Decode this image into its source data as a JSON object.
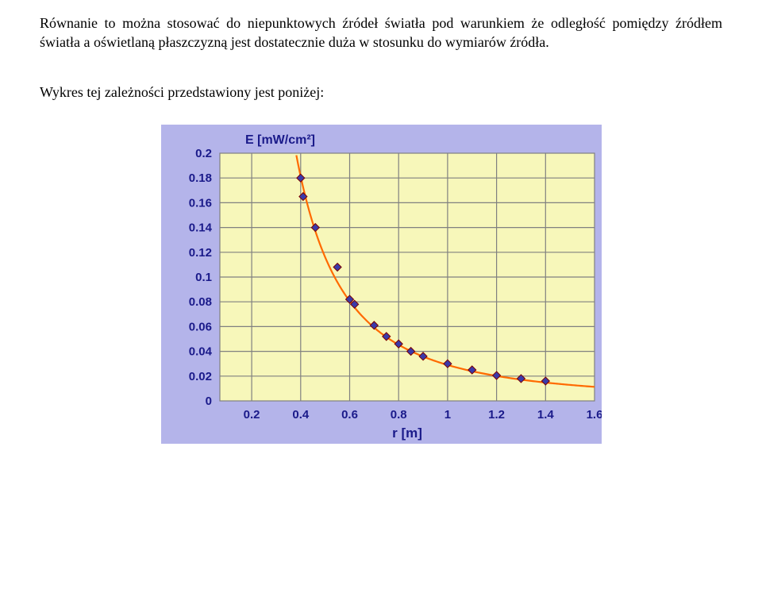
{
  "paragraph": "Równanie to można stosować do niepunktowych źródeł światła pod warunkiem że odległość pomiędzy źródłem światła a oświetlaną płaszczyzną jest dostatecznie duża w stosunku do wymiarów źródła.",
  "caption": "Wykres tej zależności przedstawiony jest poniżej:",
  "chart": {
    "type": "scatter-with-fit-curve",
    "background_color": "#b4b4ea",
    "plot_area_color": "#f7f7ba",
    "grid_color": "#808080",
    "label_color": "#1a1a8a",
    "curve_color": "#ff6a00",
    "marker_fill": "#3a3aaa",
    "marker_edge": "#7a0000",
    "marker_shape": "diamond",
    "marker_size": 5,
    "y_axis_title": "E [mW/cm²]",
    "y_axis_title_fontsize": 16,
    "x_axis_title": "r [m]",
    "x_axis_title_fontsize": 17,
    "xlim": [
      0.07,
      1.6
    ],
    "ylim": [
      0,
      0.2
    ],
    "xticks": [
      0.2,
      0.4,
      0.6,
      0.8,
      1,
      1.2,
      1.4,
      1.6
    ],
    "yticks": [
      0,
      0.02,
      0.04,
      0.06,
      0.08,
      0.1,
      0.12,
      0.14,
      0.16,
      0.18,
      0.2
    ],
    "points": [
      {
        "r": 0.4,
        "E": 0.18
      },
      {
        "r": 0.41,
        "E": 0.165
      },
      {
        "r": 0.46,
        "E": 0.14
      },
      {
        "r": 0.55,
        "E": 0.108
      },
      {
        "r": 0.6,
        "E": 0.082
      },
      {
        "r": 0.62,
        "E": 0.078
      },
      {
        "r": 0.7,
        "E": 0.061
      },
      {
        "r": 0.75,
        "E": 0.052
      },
      {
        "r": 0.8,
        "E": 0.046
      },
      {
        "r": 0.85,
        "E": 0.04
      },
      {
        "r": 0.9,
        "E": 0.036
      },
      {
        "r": 1.0,
        "E": 0.03
      },
      {
        "r": 1.1,
        "E": 0.025
      },
      {
        "r": 1.2,
        "E": 0.0205
      },
      {
        "r": 1.3,
        "E": 0.018
      },
      {
        "r": 1.4,
        "E": 0.016
      }
    ],
    "fit": {
      "type": "inverse-square",
      "coefficient": 0.029
    }
  }
}
